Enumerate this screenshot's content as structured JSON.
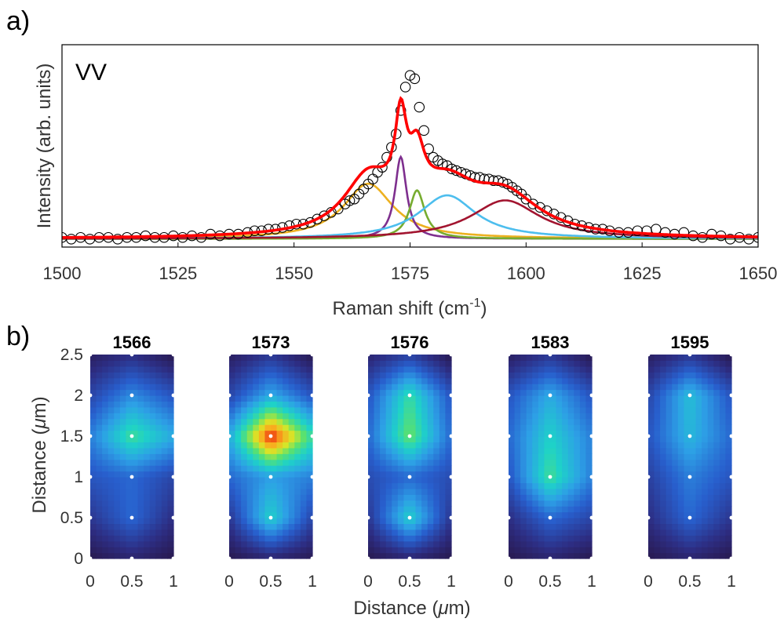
{
  "chart_data": [
    {
      "panel_label": "a)",
      "type": "line",
      "annotation": "VV",
      "xlabel": "Raman shift (cm",
      "xlabel_sup": "-1",
      "xlabel_suffix": ")",
      "ylabel": "Intensity (arb. units)",
      "xlim": [
        1500,
        1650
      ],
      "ylim": [
        0,
        1.0
      ],
      "xticks": [
        1500,
        1525,
        1550,
        1575,
        1600,
        1625,
        1650
      ],
      "grid": false,
      "components": [
        {
          "center": 1566,
          "hwhm": 6.5,
          "amp": 0.33,
          "color": "#EDB120"
        },
        {
          "center": 1573,
          "hwhm": 1.5,
          "amp": 0.49,
          "color": "#7E2F8E"
        },
        {
          "center": 1576.5,
          "hwhm": 2.0,
          "amp": 0.29,
          "color": "#77AC30"
        },
        {
          "center": 1583,
          "hwhm": 7.5,
          "amp": 0.26,
          "color": "#4DBEEE"
        },
        {
          "center": 1595.5,
          "hwhm": 9.0,
          "amp": 0.23,
          "color": "#A2142F"
        }
      ],
      "fit_color": "#FF0000",
      "measured_points": {
        "x": [
          1500,
          1502,
          1504,
          1506,
          1508,
          1510,
          1512,
          1514,
          1516,
          1518,
          1520,
          1522,
          1524,
          1526,
          1528,
          1530,
          1532,
          1534,
          1536,
          1538,
          1540,
          1541.5,
          1543,
          1544.5,
          1546,
          1547.5,
          1549,
          1550.5,
          1552,
          1553.5,
          1555,
          1556.5,
          1558,
          1559.5,
          1561,
          1562,
          1563,
          1564,
          1565,
          1566,
          1567,
          1568,
          1569,
          1570,
          1571,
          1572,
          1573,
          1574,
          1575,
          1576,
          1577,
          1578,
          1579,
          1580,
          1581,
          1582,
          1583,
          1584,
          1585,
          1586,
          1587,
          1588,
          1589,
          1590,
          1591,
          1592,
          1593,
          1594,
          1595,
          1596,
          1597,
          1598,
          1599,
          1600,
          1601.5,
          1603,
          1604.5,
          1606,
          1607.5,
          1609,
          1610.5,
          1612,
          1613.5,
          1615,
          1616.5,
          1618,
          1620,
          1622,
          1624,
          1626,
          1628,
          1630,
          1632,
          1634,
          1636,
          1638,
          1640,
          1642,
          1644,
          1646,
          1648,
          1650
        ],
        "y": [
          0.02,
          0.01,
          0.02,
          0.01,
          0.02,
          0.02,
          0.01,
          0.02,
          0.02,
          0.03,
          0.02,
          0.02,
          0.03,
          0.02,
          0.03,
          0.02,
          0.04,
          0.03,
          0.04,
          0.04,
          0.05,
          0.06,
          0.06,
          0.07,
          0.07,
          0.08,
          0.09,
          0.1,
          0.1,
          0.11,
          0.13,
          0.15,
          0.17,
          0.19,
          0.22,
          0.24,
          0.25,
          0.28,
          0.31,
          0.34,
          0.37,
          0.41,
          0.44,
          0.5,
          0.56,
          0.64,
          0.78,
          0.92,
          0.99,
          0.97,
          0.8,
          0.66,
          0.55,
          0.5,
          0.48,
          0.46,
          0.45,
          0.43,
          0.42,
          0.41,
          0.4,
          0.39,
          0.38,
          0.38,
          0.37,
          0.37,
          0.36,
          0.36,
          0.35,
          0.34,
          0.32,
          0.3,
          0.28,
          0.25,
          0.22,
          0.2,
          0.18,
          0.16,
          0.14,
          0.12,
          0.1,
          0.09,
          0.08,
          0.07,
          0.07,
          0.06,
          0.05,
          0.05,
          0.06,
          0.06,
          0.07,
          0.05,
          0.04,
          0.05,
          0.03,
          0.02,
          0.04,
          0.03,
          0.01,
          0.02,
          0.01,
          0.02
        ]
      }
    },
    {
      "panel_label": "b)",
      "type": "heatmap",
      "xlabel": "Distance (",
      "xlabel_mu": "μ",
      "xlabel_suffix": "m)",
      "ylabel": "Distance (",
      "ylabel_mu": "μ",
      "ylabel_suffix": "m)",
      "xlim": [
        0,
        1
      ],
      "ylim": [
        0,
        2.5
      ],
      "xticks": [
        "0",
        "0.5",
        "1"
      ],
      "yticks": [
        "0",
        "0.5",
        "1",
        "1.5",
        "2",
        "2.5"
      ],
      "grid_x": [
        0,
        0.5,
        1
      ],
      "grid_y": [
        0,
        0.5,
        1,
        1.5,
        2,
        2.5
      ],
      "maps": [
        {
          "title": "1566",
          "values": [
            [
              0.02,
              0.08,
              0.02
            ],
            [
              0.15,
              0.3,
              0.12
            ],
            [
              0.25,
              0.3,
              0.2
            ],
            [
              0.35,
              0.62,
              0.45
            ],
            [
              0.2,
              0.38,
              0.25
            ],
            [
              0.05,
              0.12,
              0.02
            ]
          ]
        },
        {
          "title": "1573",
          "values": [
            [
              0.02,
              0.08,
              0.03
            ],
            [
              0.15,
              0.55,
              0.2
            ],
            [
              0.3,
              0.42,
              0.35
            ],
            [
              0.45,
              1.0,
              0.6
            ],
            [
              0.2,
              0.45,
              0.25
            ],
            [
              0.05,
              0.15,
              0.02
            ]
          ]
        },
        {
          "title": "1576",
          "values": [
            [
              0.02,
              0.08,
              0.02
            ],
            [
              0.15,
              0.55,
              0.15
            ],
            [
              0.22,
              0.3,
              0.22
            ],
            [
              0.3,
              0.68,
              0.3
            ],
            [
              0.25,
              0.6,
              0.25
            ],
            [
              0.08,
              0.18,
              0.02
            ]
          ]
        },
        {
          "title": "1583",
          "values": [
            [
              0.02,
              0.08,
              0.02
            ],
            [
              0.12,
              0.3,
              0.2
            ],
            [
              0.25,
              0.62,
              0.35
            ],
            [
              0.3,
              0.55,
              0.35
            ],
            [
              0.25,
              0.45,
              0.25
            ],
            [
              0.05,
              0.15,
              0.02
            ]
          ]
        },
        {
          "title": "1595",
          "values": [
            [
              0.02,
              0.08,
              0.02
            ],
            [
              0.12,
              0.3,
              0.15
            ],
            [
              0.18,
              0.35,
              0.25
            ],
            [
              0.25,
              0.48,
              0.3
            ],
            [
              0.2,
              0.5,
              0.25
            ],
            [
              0.05,
              0.15,
              0.02
            ]
          ]
        }
      ],
      "colormap": "jet-like (dark navy → blue → cyan → green → yellow → orange → red)",
      "marker_color": "#ffffff"
    }
  ]
}
